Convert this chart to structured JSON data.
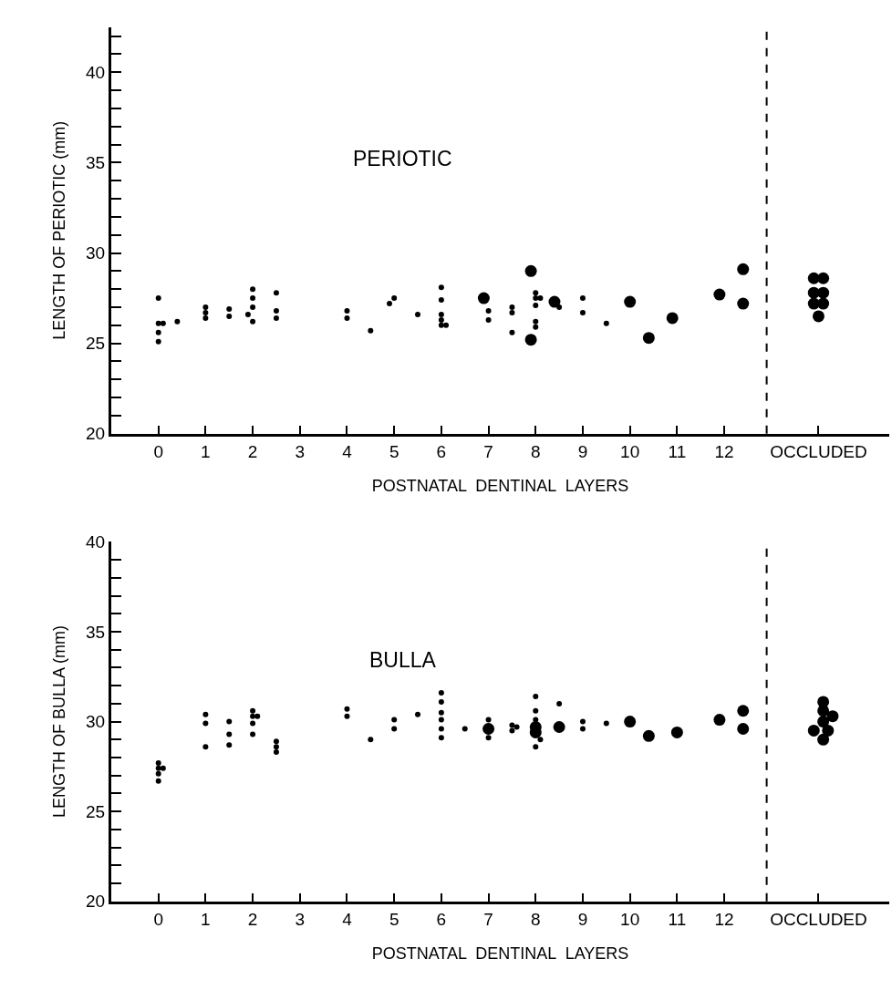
{
  "chart_data": [
    {
      "type": "scatter",
      "title": "PERIOTIC",
      "xlabel": "POSTNATAL  DENTINAL  LAYERS",
      "ylabel": "LENGTH OF PERIOTIC (mm)",
      "marker": "circle",
      "xlim": [
        -1,
        15.5
      ],
      "xticks": [
        0,
        1,
        2,
        3,
        4,
        5,
        6,
        7,
        8,
        9,
        10,
        11,
        12,
        {
          "value": 14,
          "label": "OCCLUDED"
        }
      ],
      "ylim": [
        20,
        42.5
      ],
      "yticks": [
        20,
        {
          "value": 21,
          "label": null
        },
        {
          "value": 22,
          "label": null
        },
        {
          "value": 23,
          "label": null
        },
        {
          "value": 24,
          "label": null
        },
        25,
        {
          "value": 26,
          "label": null
        },
        {
          "value": 27,
          "label": null
        },
        {
          "value": 28,
          "label": null
        },
        {
          "value": 29,
          "label": null
        },
        30,
        {
          "value": 31,
          "label": null
        },
        {
          "value": 32,
          "label": null
        },
        {
          "value": 33,
          "label": null
        },
        {
          "value": 34,
          "label": null
        },
        35,
        {
          "value": 36,
          "label": null
        },
        {
          "value": 37,
          "label": null
        },
        {
          "value": 38,
          "label": null
        },
        {
          "value": 39,
          "label": null
        },
        40,
        {
          "value": 41,
          "label": null
        },
        {
          "value": 42,
          "label": null
        }
      ],
      "ref_lines": [
        {
          "axis": "x",
          "value": 12.9,
          "line_style": "dashed",
          "color": "#000000"
        }
      ],
      "series": [
        {
          "color": "#000000",
          "x": [
            0,
            0,
            0,
            0,
            0.1,
            0.4,
            1,
            1,
            1,
            1.5,
            1.5,
            2,
            2,
            2,
            2,
            1.9,
            2.5,
            2.5,
            2.5,
            4,
            4,
            4.5,
            4.9,
            5,
            5.5,
            6,
            6,
            6,
            6,
            6,
            6.1,
            7,
            7,
            7.5,
            7.5,
            7.5,
            8,
            8,
            8,
            8,
            8,
            8.1,
            8.5,
            9,
            9,
            9.5
          ],
          "values": [
            27.5,
            26.1,
            25.6,
            25.1,
            26.1,
            26.2,
            27.0,
            26.7,
            26.4,
            26.9,
            26.5,
            28.0,
            27.5,
            27.0,
            26.2,
            26.6,
            27.8,
            26.8,
            26.4,
            26.8,
            26.4,
            25.7,
            27.2,
            27.5,
            26.6,
            28.1,
            27.4,
            26.6,
            26.3,
            26.0,
            26.0,
            26.8,
            26.3,
            27.0,
            26.7,
            25.6,
            27.8,
            27.5,
            27.1,
            26.2,
            25.9,
            27.5,
            27.0,
            27.5,
            26.7,
            26.1
          ]
        },
        {
          "color": "#000000",
          "x": [
            6.9,
            7.9,
            7.9,
            8.4,
            10,
            10.4,
            10.9,
            11.9,
            12.4,
            12.4,
            13.9,
            14.1,
            13.9,
            14.1,
            13.9,
            14.1,
            14.0
          ],
          "values": [
            27.5,
            25.2,
            29.0,
            27.3,
            27.3,
            25.3,
            26.4,
            27.7,
            29.1,
            27.2,
            28.6,
            28.6,
            27.8,
            27.8,
            27.2,
            27.2,
            26.5
          ]
        }
      ]
    },
    {
      "type": "scatter",
      "title": "BULLA",
      "xlabel": "POSTNATAL  DENTINAL  LAYERS",
      "ylabel": "LENGTH OF BULLA (mm)",
      "marker": "circle",
      "xlim": [
        -1,
        15.5
      ],
      "xticks": [
        0,
        1,
        2,
        3,
        4,
        5,
        6,
        7,
        8,
        9,
        10,
        11,
        12,
        {
          "value": 14,
          "label": "OCCLUDED"
        }
      ],
      "ylim": [
        20,
        40
      ],
      "yticks": [
        20,
        {
          "value": 21,
          "label": null
        },
        {
          "value": 22,
          "label": null
        },
        {
          "value": 23,
          "label": null
        },
        {
          "value": 24,
          "label": null
        },
        25,
        {
          "value": 26,
          "label": null
        },
        {
          "value": 27,
          "label": null
        },
        {
          "value": 28,
          "label": null
        },
        {
          "value": 29,
          "label": null
        },
        30,
        {
          "value": 31,
          "label": null
        },
        {
          "value": 32,
          "label": null
        },
        {
          "value": 33,
          "label": null
        },
        {
          "value": 34,
          "label": null
        },
        35,
        {
          "value": 36,
          "label": null
        },
        {
          "value": 37,
          "label": null
        },
        {
          "value": 38,
          "label": null
        },
        {
          "value": 39,
          "label": null
        },
        40
      ],
      "ref_lines": [
        {
          "axis": "x",
          "value": 12.9,
          "line_style": "dashed",
          "color": "#000000"
        }
      ],
      "series": [
        {
          "color": "#000000",
          "x": [
            0,
            0,
            0,
            0,
            0.1,
            1,
            1,
            1,
            1.5,
            1.5,
            1.5,
            2,
            2,
            2,
            2,
            2.1,
            2.5,
            2.5,
            2.5,
            4,
            4,
            4.5,
            5,
            5,
            5.5,
            6,
            6,
            6,
            6,
            6,
            6,
            6.5,
            7,
            7,
            7.5,
            7.5,
            7.6,
            8,
            8,
            8,
            8,
            8.1,
            8.5,
            9,
            9,
            9.5
          ],
          "values": [
            27.7,
            27.4,
            27.1,
            26.7,
            27.4,
            30.4,
            29.9,
            28.6,
            30.0,
            29.3,
            28.7,
            30.6,
            30.3,
            29.9,
            29.3,
            30.3,
            28.9,
            28.6,
            28.3,
            30.7,
            30.3,
            29.0,
            30.1,
            29.6,
            30.4,
            31.6,
            31.1,
            30.5,
            30.1,
            29.6,
            29.1,
            29.6,
            30.1,
            29.1,
            29.8,
            29.5,
            29.7,
            31.4,
            30.6,
            30.1,
            28.6,
            29.0,
            31.0,
            30.0,
            29.6,
            29.9
          ]
        },
        {
          "color": "#000000",
          "x": [
            7.0,
            8,
            8,
            8.5,
            10,
            10.4,
            11,
            11.9,
            12.4,
            12.4,
            14.1,
            14.1,
            14.3,
            14.1,
            13.9,
            14.2,
            14.1
          ],
          "values": [
            29.6,
            29.7,
            29.4,
            29.7,
            30.0,
            29.2,
            29.4,
            30.1,
            30.6,
            29.6,
            31.1,
            30.6,
            30.3,
            30.0,
            29.5,
            29.5,
            29.0
          ]
        }
      ]
    }
  ]
}
